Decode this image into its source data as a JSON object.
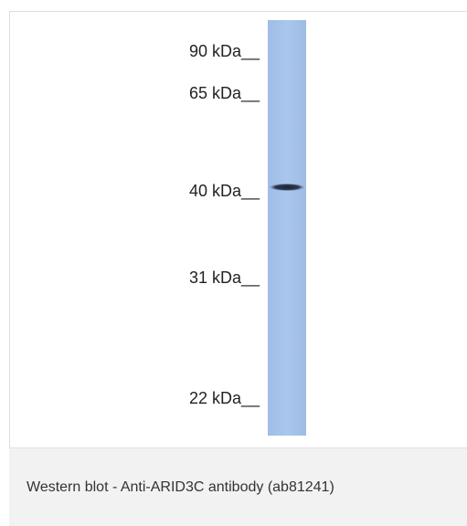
{
  "figure": {
    "markers": [
      "90 kDa__",
      "65 kDa__",
      "40 kDa__",
      "31 kDa__",
      "22 kDa__"
    ]
  },
  "caption": "Western blot - Anti-ARID3C antibody (ab81241)"
}
